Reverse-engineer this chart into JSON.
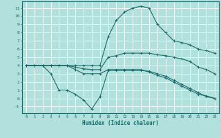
{
  "background_color": "#b2e0dc",
  "grid_color": "#ffffff",
  "line_color": "#1a6b6b",
  "xlabel": "Humidex (Indice chaleur)",
  "xlim": [
    -0.5,
    23.5
  ],
  "ylim": [
    -1.8,
    11.8
  ],
  "xticks": [
    0,
    1,
    2,
    3,
    4,
    5,
    6,
    7,
    8,
    9,
    10,
    11,
    12,
    13,
    14,
    15,
    16,
    17,
    18,
    19,
    20,
    21,
    22,
    23
  ],
  "yticks": [
    -1,
    0,
    1,
    2,
    3,
    4,
    5,
    6,
    7,
    8,
    9,
    10,
    11
  ],
  "curves": [
    {
      "x": [
        0,
        1,
        2,
        3,
        4,
        5,
        6,
        7,
        8,
        9,
        10,
        11,
        12,
        13,
        14,
        15,
        16,
        17,
        18,
        19,
        20,
        21,
        22,
        23
      ],
      "y": [
        4.0,
        4.0,
        4.0,
        3.0,
        1.0,
        1.0,
        0.5,
        -0.2,
        -1.3,
        0.2,
        3.4,
        3.4,
        3.4,
        3.4,
        3.4,
        3.3,
        3.0,
        2.7,
        2.2,
        1.7,
        1.2,
        0.7,
        0.2,
        0.0
      ]
    },
    {
      "x": [
        0,
        1,
        2,
        3,
        4,
        5,
        6,
        7,
        8,
        9,
        10,
        11,
        12,
        13,
        14,
        15,
        16,
        17,
        18,
        19,
        20,
        21,
        22,
        23
      ],
      "y": [
        4.0,
        4.0,
        4.0,
        4.0,
        4.0,
        4.0,
        3.8,
        3.6,
        3.5,
        3.5,
        5.0,
        5.2,
        5.5,
        5.5,
        5.5,
        5.5,
        5.3,
        5.2,
        5.0,
        4.8,
        4.5,
        3.8,
        3.5,
        3.0
      ]
    },
    {
      "x": [
        0,
        1,
        2,
        3,
        4,
        5,
        6,
        7,
        8,
        9,
        10,
        11,
        12,
        13,
        14,
        15,
        16,
        17,
        18,
        19,
        20,
        21,
        22,
        23
      ],
      "y": [
        4.0,
        4.0,
        4.0,
        4.0,
        4.0,
        4.0,
        4.0,
        4.0,
        4.0,
        4.0,
        7.5,
        9.5,
        10.5,
        11.0,
        11.2,
        11.0,
        9.0,
        8.0,
        7.0,
        6.8,
        6.5,
        6.0,
        5.8,
        5.5
      ]
    },
    {
      "x": [
        0,
        1,
        2,
        3,
        4,
        5,
        6,
        7,
        8,
        9,
        10,
        11,
        12,
        13,
        14,
        15,
        16,
        17,
        18,
        19,
        20,
        21,
        22,
        23
      ],
      "y": [
        4.0,
        4.0,
        4.0,
        4.0,
        4.0,
        4.0,
        3.5,
        3.0,
        3.0,
        3.0,
        3.5,
        3.5,
        3.5,
        3.5,
        3.5,
        3.2,
        2.8,
        2.5,
        2.0,
        1.5,
        1.0,
        0.5,
        0.3,
        0.0
      ]
    }
  ]
}
